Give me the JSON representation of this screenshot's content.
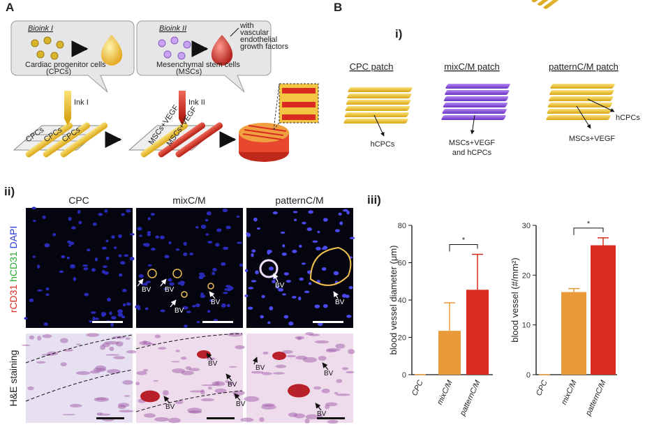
{
  "panel_labels": {
    "a": "A",
    "b": "B",
    "b_i": "i)",
    "b_ii": "ii)",
    "b_iii": "iii)"
  },
  "panel_a": {
    "bioink1": {
      "title": "Bioink I",
      "caption": "Cardiac progenitor cells",
      "abbr": "(CPCs)"
    },
    "bioink2": {
      "title": "Bioink II",
      "caption": "Mesenchymal stem cells",
      "abbr": "(MSCs)",
      "note": [
        "with",
        "vascular",
        "endothelial",
        "growth factors"
      ]
    },
    "ink1": "Ink I",
    "ink2": "Ink II",
    "strands1": [
      "CPCs",
      "CPCs",
      "CPCs"
    ],
    "strands2": [
      "MSCs+VEGF",
      "MSCs+VEGF"
    ]
  },
  "panel_b": {
    "patches": [
      {
        "title": "CPC patch",
        "labels": [
          "hCPCs"
        ]
      },
      {
        "title": "mixC/M patch",
        "labels": [
          "MSCs+VEGF",
          "and hCPCs"
        ]
      },
      {
        "title": "patternC/M patch",
        "labels": [
          "hCPCs",
          "MSCs+VEGF"
        ]
      }
    ]
  },
  "panel_ii": {
    "columns": [
      "CPC",
      "mixC/M",
      "patternC/M"
    ],
    "stain_label": [
      "rCD31",
      "hCD31",
      "DAPI"
    ],
    "he_label": "H&E staining",
    "bv_labels": [
      "BV",
      "BV",
      "BV",
      "BV",
      "BV",
      "BV",
      "BV",
      "BV",
      "BV",
      "BV",
      "BV",
      "BV",
      "BV"
    ]
  },
  "chart_data": [
    {
      "type": "bar",
      "ylabel": "blood vessel diameter (μm)",
      "categories": [
        "CPC",
        "mixC/M",
        "patternC/M"
      ],
      "values": [
        0,
        23.5,
        45.5
      ],
      "errors": [
        0,
        15,
        19
      ],
      "colors": [
        "#e99b3a",
        "#e99b3a",
        "#d92b1f"
      ],
      "ylim": [
        0,
        80
      ],
      "yticks": [
        0,
        20,
        40,
        60,
        80
      ],
      "annotation": "*"
    },
    {
      "type": "bar",
      "ylabel": "blood vessel (#/mm²)",
      "categories": [
        "CPC",
        "mixC/M",
        "patternC/M"
      ],
      "values": [
        0,
        16.6,
        26
      ],
      "errors": [
        0,
        0.7,
        1.5
      ],
      "colors": [
        "#e99b3a",
        "#e99b3a",
        "#d92b1f"
      ],
      "ylim": [
        0,
        30
      ],
      "yticks": [
        0,
        10,
        20,
        30
      ],
      "annotation": "*"
    }
  ]
}
